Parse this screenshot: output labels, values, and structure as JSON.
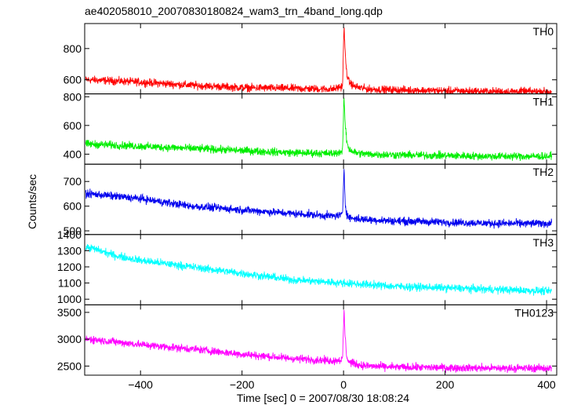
{
  "title": "ae402058010_20070830180824_wam3_trn_4band_long.qdp",
  "xlabel": "Time [sec] 0 = 2007/08/30 18:08:24",
  "ylabel": "Counts/sec",
  "chart_data": {
    "type": "line",
    "title": "ae402058010_20070830180824_wam3_trn_4band_long.qdp",
    "xlabel": "Time [sec] 0 = 2007/08/30 18:08:24",
    "ylabel": "Counts/sec",
    "xlim": [
      -510,
      420
    ],
    "xticks": [
      -400,
      -200,
      0,
      200,
      400
    ],
    "xtick_labels": [
      "−400",
      "−200",
      "0",
      "200",
      "400"
    ],
    "grid": false,
    "legend": "none",
    "series": [
      {
        "name": "TH0",
        "color": "#ff0000",
        "ylim": [
          510,
          960
        ],
        "yticks": [
          600,
          800
        ],
        "x": [
          -500,
          -400,
          -300,
          -200,
          -100,
          -20,
          -2,
          1,
          3,
          6,
          10,
          20,
          30,
          50,
          100,
          200,
          300,
          400
        ],
        "values": [
          600,
          585,
          565,
          550,
          545,
          540,
          560,
          950,
          780,
          650,
          590,
          560,
          550,
          540,
          535,
          530,
          525,
          525
        ]
      },
      {
        "name": "TH1",
        "color": "#00ee00",
        "ylim": [
          330,
          820
        ],
        "yticks": [
          400,
          600,
          800
        ],
        "x": [
          -500,
          -400,
          -300,
          -200,
          -100,
          -20,
          -2,
          1,
          3,
          6,
          10,
          20,
          30,
          50,
          100,
          200,
          300,
          400
        ],
        "values": [
          470,
          455,
          440,
          425,
          410,
          405,
          420,
          800,
          620,
          500,
          440,
          415,
          405,
          400,
          395,
          390,
          385,
          385
        ]
      },
      {
        "name": "TH2",
        "color": "#0000ee",
        "ylim": [
          485,
          770
        ],
        "yticks": [
          500,
          600,
          700
        ],
        "x": [
          -500,
          -400,
          -300,
          -200,
          -100,
          -20,
          -2,
          1,
          3,
          6,
          10,
          20,
          50,
          100,
          200,
          300,
          400
        ],
        "values": [
          650,
          630,
          600,
          585,
          570,
          560,
          565,
          760,
          620,
          570,
          555,
          550,
          545,
          540,
          535,
          530,
          530
        ]
      },
      {
        "name": "TH3",
        "color": "#00ffff",
        "ylim": [
          965,
          1400
        ],
        "yticks": [
          1000,
          1100,
          1200,
          1300,
          1400
        ],
        "x": [
          -500,
          -450,
          -400,
          -300,
          -200,
          -100,
          0,
          100,
          200,
          300,
          400
        ],
        "values": [
          1320,
          1270,
          1240,
          1200,
          1160,
          1120,
          1100,
          1080,
          1070,
          1060,
          1050
        ]
      },
      {
        "name": "TH0123",
        "color": "#ff00ff",
        "ylim": [
          2330,
          3640
        ],
        "yticks": [
          2500,
          3000,
          3500
        ],
        "x": [
          -500,
          -400,
          -300,
          -200,
          -100,
          -20,
          -2,
          1,
          3,
          6,
          10,
          20,
          30,
          50,
          100,
          200,
          300,
          400
        ],
        "values": [
          3000,
          2900,
          2820,
          2720,
          2640,
          2600,
          2620,
          3550,
          3050,
          2700,
          2580,
          2550,
          2520,
          2500,
          2480,
          2470,
          2460,
          2460
        ]
      }
    ]
  }
}
